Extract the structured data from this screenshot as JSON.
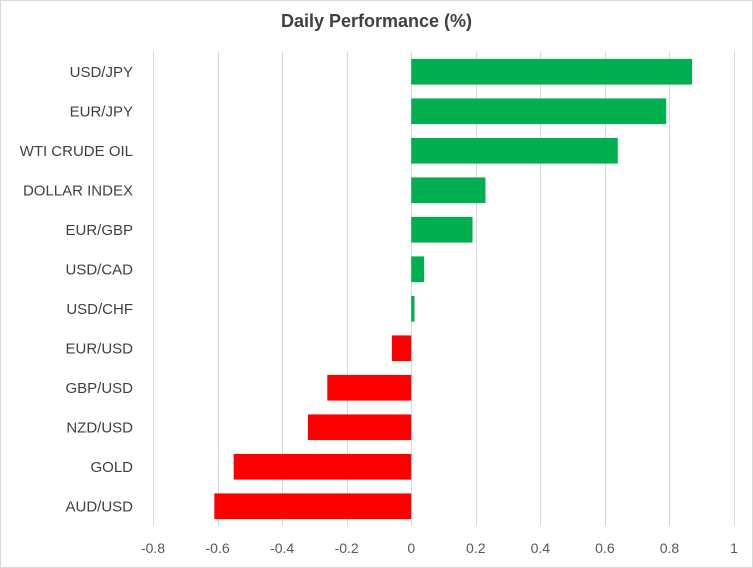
{
  "chart_data": {
    "type": "bar",
    "orientation": "horizontal",
    "title": "Daily Performance  (%)",
    "categories": [
      "USD/JPY",
      "EUR/JPY",
      "WTI CRUDE OIL",
      "DOLLAR INDEX",
      "EUR/GBP",
      "USD/CAD",
      "USD/CHF",
      "EUR/USD",
      "GBP/USD",
      "NZD/USD",
      "GOLD",
      "AUD/USD"
    ],
    "values": [
      0.87,
      0.79,
      0.64,
      0.23,
      0.19,
      0.04,
      0.01,
      -0.06,
      -0.26,
      -0.32,
      -0.55,
      -0.61
    ],
    "xlim": [
      -0.8,
      1
    ],
    "xticks": [
      -0.8,
      -0.6,
      -0.4,
      -0.2,
      0,
      0.2,
      0.4,
      0.6,
      0.8,
      1
    ],
    "xtick_labels": [
      "-0.8",
      "-0.6",
      "-0.4",
      "-0.2",
      "0",
      "0.2",
      "0.4",
      "0.6",
      "0.8",
      "1"
    ],
    "grid": "vertical",
    "legend": "none",
    "colors": {
      "positive": "#00b050",
      "negative": "#ff0000",
      "gridline": "#d9d9d9"
    }
  }
}
